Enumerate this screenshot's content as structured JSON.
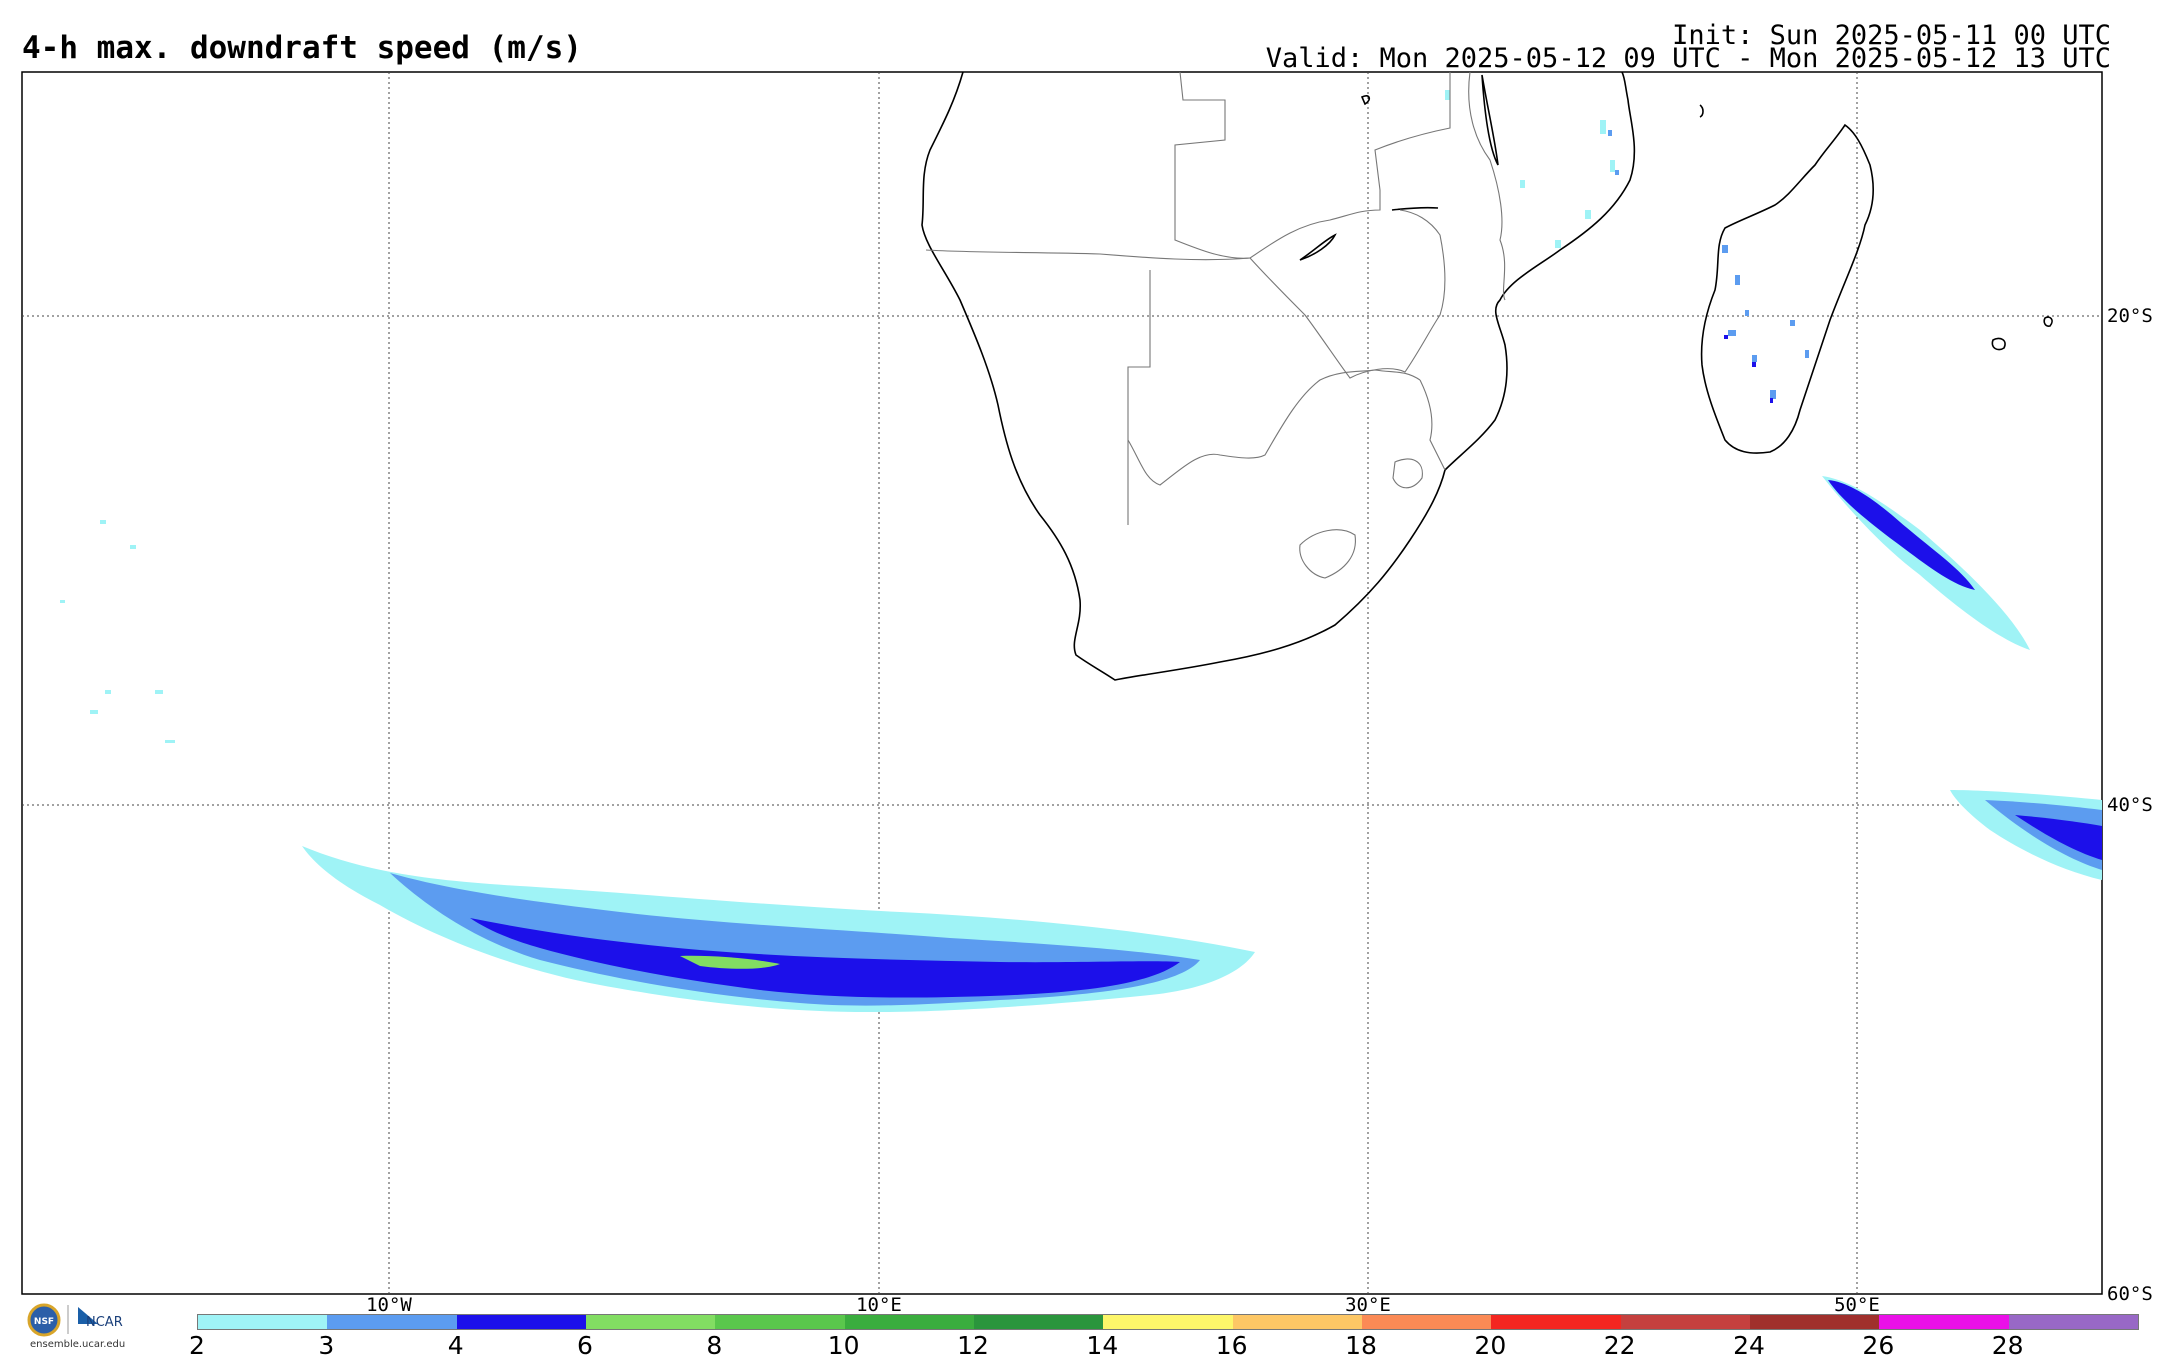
{
  "header": {
    "title": "4-h max. downdraft speed (m/s)",
    "init": "Init: Sun 2025-05-11 00 UTC",
    "valid": "Valid: Mon 2025-05-12 09 UTC - Mon 2025-05-12 13 UTC"
  },
  "map": {
    "lon_labels": [
      "10°W",
      "10°E",
      "30°E",
      "50°E"
    ],
    "lat_labels": [
      "20°S",
      "40°S",
      "60°S"
    ],
    "gridlines": true
  },
  "colorbar": {
    "ticks": [
      "2",
      "3",
      "4",
      "6",
      "8",
      "10",
      "12",
      "14",
      "16",
      "18",
      "20",
      "22",
      "24",
      "26",
      "28"
    ],
    "colors": [
      "#9ff3f6",
      "#5c9cf0",
      "#1c10ea",
      "#82dd62",
      "#5ac74c",
      "#3aad3e",
      "#2a953c",
      "#fdf66a",
      "#fdc765",
      "#fb8a55",
      "#f42620",
      "#c5403e",
      "#a0302c",
      "#ea10e8",
      "#9868c6"
    ]
  },
  "logo": {
    "org_left": "NSF",
    "org_right": "NCAR",
    "site": "ensemble.ucar.edu"
  }
}
